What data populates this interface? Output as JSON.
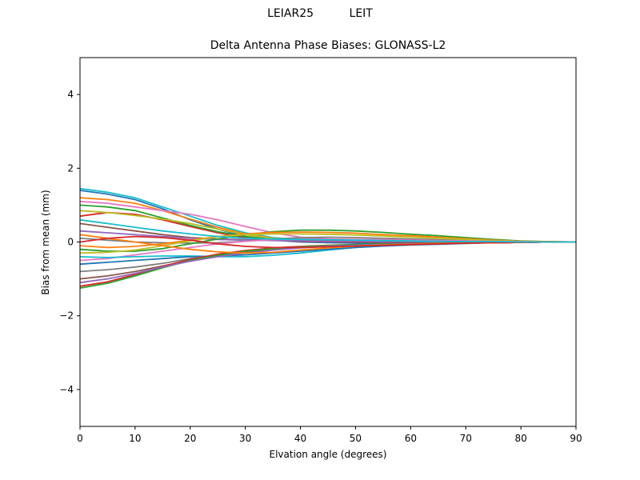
{
  "figure": {
    "suptitle": "LEIAR25          LEIT",
    "title": "Delta Antenna Phase Biases: GLONASS-L2",
    "xlabel": "Elvation angle (degrees)",
    "ylabel": "Bias from mean (mm)"
  },
  "chart_data": {
    "type": "line",
    "title": "Delta Antenna Phase Biases: GLONASS-L2",
    "suptitle": "LEIAR25          LEIT",
    "xlabel": "Elvation angle (degrees)",
    "ylabel": "Bias from mean (mm)",
    "xlim": [
      0,
      90
    ],
    "ylim": [
      -5,
      5
    ],
    "xticks": [
      0,
      10,
      20,
      30,
      40,
      50,
      60,
      70,
      80,
      90
    ],
    "yticks": [
      -4,
      -2,
      0,
      2,
      4
    ],
    "ytick_labels": [
      "−4",
      "−2",
      "0",
      "2",
      "4"
    ],
    "grid": false,
    "legend": "none",
    "x": [
      0,
      5,
      10,
      15,
      20,
      25,
      30,
      35,
      40,
      45,
      50,
      55,
      60,
      65,
      70,
      75,
      80,
      85,
      90
    ],
    "series_note": "Many (~60) overlapping per-satellite curves converging to 0 at 90 deg; representative subset",
    "series": [
      {
        "name": "s1",
        "color": "#17becf",
        "values": [
          1.45,
          1.35,
          1.2,
          0.95,
          0.7,
          0.45,
          0.25,
          0.12,
          0.06,
          0.03,
          0.02,
          0.02,
          0.02,
          0.02,
          0.01,
          0.01,
          0.0,
          0.0,
          0.0
        ]
      },
      {
        "name": "s2",
        "color": "#1f77b4",
        "values": [
          1.4,
          1.3,
          1.15,
          0.9,
          0.6,
          0.35,
          0.15,
          0.05,
          0.0,
          -0.02,
          -0.03,
          -0.03,
          -0.02,
          -0.02,
          -0.01,
          -0.01,
          0.0,
          0.0,
          0.0
        ]
      },
      {
        "name": "s3",
        "color": "#ff7f0e",
        "values": [
          1.2,
          1.15,
          1.05,
          0.85,
          0.62,
          0.4,
          0.22,
          0.1,
          0.05,
          0.03,
          0.02,
          0.02,
          0.01,
          0.01,
          0.01,
          0.0,
          0.0,
          0.0,
          0.0
        ]
      },
      {
        "name": "s4",
        "color": "#e377c2",
        "values": [
          1.1,
          1.05,
          0.95,
          0.85,
          0.75,
          0.6,
          0.42,
          0.25,
          0.13,
          0.08,
          0.05,
          0.04,
          0.03,
          0.02,
          0.01,
          0.01,
          0.0,
          0.0,
          0.0
        ]
      },
      {
        "name": "s5",
        "color": "#d62728",
        "values": [
          0.7,
          0.8,
          0.75,
          0.6,
          0.42,
          0.25,
          0.12,
          0.05,
          0.02,
          0.01,
          0.0,
          0.0,
          0.0,
          0.0,
          0.0,
          0.0,
          0.0,
          0.0,
          0.0
        ]
      },
      {
        "name": "s6",
        "color": "#2ca02c",
        "values": [
          1.0,
          0.95,
          0.85,
          0.65,
          0.45,
          0.28,
          0.15,
          0.08,
          0.05,
          0.04,
          0.03,
          0.02,
          0.02,
          0.01,
          0.01,
          0.0,
          0.0,
          0.0,
          0.0
        ]
      },
      {
        "name": "s7",
        "color": "#bcbd22",
        "values": [
          0.85,
          0.8,
          0.72,
          0.62,
          0.5,
          0.35,
          0.2,
          0.1,
          0.06,
          0.04,
          0.03,
          0.02,
          0.02,
          0.01,
          0.01,
          0.0,
          0.0,
          0.0,
          0.0
        ]
      },
      {
        "name": "s8",
        "color": "#8c564b",
        "values": [
          0.5,
          0.4,
          0.3,
          0.2,
          0.12,
          0.08,
          0.06,
          0.05,
          0.04,
          0.03,
          0.02,
          0.02,
          0.01,
          0.01,
          0.0,
          0.0,
          0.0,
          0.0,
          0.0
        ]
      },
      {
        "name": "s9",
        "color": "#9467bd",
        "values": [
          0.3,
          0.25,
          0.2,
          0.15,
          0.1,
          0.07,
          0.05,
          0.04,
          0.03,
          0.02,
          0.02,
          0.01,
          0.01,
          0.01,
          0.0,
          0.0,
          0.0,
          0.0,
          0.0
        ]
      },
      {
        "name": "s10",
        "color": "#7f7f7f",
        "values": [
          0.1,
          0.05,
          0.0,
          -0.02,
          -0.03,
          -0.02,
          0.02,
          0.08,
          0.12,
          0.13,
          0.12,
          0.1,
          0.08,
          0.06,
          0.04,
          0.02,
          0.01,
          0.0,
          0.0
        ]
      },
      {
        "name": "s11",
        "color": "#2ca02c",
        "values": [
          -0.2,
          -0.25,
          -0.25,
          -0.18,
          -0.05,
          0.08,
          0.2,
          0.28,
          0.32,
          0.32,
          0.3,
          0.26,
          0.21,
          0.17,
          0.12,
          0.07,
          0.03,
          0.01,
          0.0
        ]
      },
      {
        "name": "s12",
        "color": "#ff7f0e",
        "values": [
          -0.1,
          -0.15,
          -0.12,
          -0.05,
          0.05,
          0.15,
          0.22,
          0.26,
          0.27,
          0.26,
          0.24,
          0.2,
          0.17,
          0.13,
          0.09,
          0.05,
          0.02,
          0.01,
          0.0
        ]
      },
      {
        "name": "s13",
        "color": "#bcbd22",
        "values": [
          -0.3,
          -0.28,
          -0.22,
          -0.1,
          0.03,
          0.14,
          0.2,
          0.22,
          0.22,
          0.21,
          0.19,
          0.16,
          0.13,
          0.1,
          0.07,
          0.04,
          0.02,
          0.0,
          0.0
        ]
      },
      {
        "name": "s14",
        "color": "#e377c2",
        "values": [
          -0.5,
          -0.45,
          -0.35,
          -0.25,
          -0.15,
          -0.05,
          0.02,
          0.06,
          0.08,
          0.08,
          0.07,
          0.06,
          0.05,
          0.04,
          0.03,
          0.02,
          0.01,
          0.0,
          0.0
        ]
      },
      {
        "name": "s15",
        "color": "#17becf",
        "values": [
          -0.4,
          -0.42,
          -0.4,
          -0.38,
          -0.38,
          -0.4,
          -0.4,
          -0.36,
          -0.3,
          -0.22,
          -0.15,
          -0.1,
          -0.07,
          -0.05,
          -0.03,
          -0.02,
          -0.01,
          0.0,
          0.0
        ]
      },
      {
        "name": "s16",
        "color": "#1f77b4",
        "values": [
          -0.6,
          -0.55,
          -0.5,
          -0.45,
          -0.4,
          -0.38,
          -0.35,
          -0.3,
          -0.25,
          -0.2,
          -0.15,
          -0.11,
          -0.08,
          -0.06,
          -0.04,
          -0.02,
          -0.01,
          0.0,
          0.0
        ]
      },
      {
        "name": "s17",
        "color": "#7f7f7f",
        "values": [
          -0.8,
          -0.75,
          -0.68,
          -0.58,
          -0.45,
          -0.35,
          -0.27,
          -0.2,
          -0.15,
          -0.11,
          -0.08,
          -0.06,
          -0.05,
          -0.04,
          -0.03,
          -0.02,
          -0.01,
          0.0,
          0.0
        ]
      },
      {
        "name": "s18",
        "color": "#8c564b",
        "values": [
          -1.0,
          -0.92,
          -0.8,
          -0.65,
          -0.5,
          -0.38,
          -0.28,
          -0.2,
          -0.15,
          -0.11,
          -0.08,
          -0.06,
          -0.05,
          -0.04,
          -0.03,
          -0.02,
          -0.01,
          0.0,
          0.0
        ]
      },
      {
        "name": "s19",
        "color": "#d62728",
        "values": [
          -1.2,
          -1.08,
          -0.88,
          -0.66,
          -0.47,
          -0.33,
          -0.23,
          -0.16,
          -0.12,
          -0.09,
          -0.07,
          -0.05,
          -0.04,
          -0.03,
          -0.02,
          -0.01,
          -0.01,
          0.0,
          0.0
        ]
      },
      {
        "name": "s20",
        "color": "#2ca02c",
        "values": [
          -1.25,
          -1.12,
          -0.92,
          -0.7,
          -0.5,
          -0.36,
          -0.25,
          -0.18,
          -0.13,
          -0.1,
          -0.07,
          -0.05,
          -0.04,
          -0.03,
          -0.02,
          -0.01,
          -0.01,
          0.0,
          0.0
        ]
      },
      {
        "name": "s21",
        "color": "#9467bd",
        "values": [
          -1.1,
          -1.0,
          -0.85,
          -0.68,
          -0.52,
          -0.4,
          -0.3,
          -0.22,
          -0.16,
          -0.12,
          -0.09,
          -0.07,
          -0.05,
          -0.04,
          -0.03,
          -0.02,
          -0.01,
          0.0,
          0.0
        ]
      },
      {
        "name": "s22",
        "color": "#ff7f0e",
        "values": [
          0.2,
          0.1,
          0.0,
          -0.1,
          -0.2,
          -0.27,
          -0.3,
          -0.28,
          -0.22,
          -0.16,
          -0.11,
          -0.08,
          -0.06,
          -0.04,
          -0.03,
          -0.02,
          -0.01,
          0.0,
          0.0
        ]
      },
      {
        "name": "s23",
        "color": "#d62728",
        "values": [
          0.0,
          0.1,
          0.15,
          0.12,
          0.05,
          -0.05,
          -0.12,
          -0.15,
          -0.15,
          -0.13,
          -0.11,
          -0.09,
          -0.07,
          -0.05,
          -0.03,
          -0.02,
          -0.01,
          0.0,
          0.0
        ]
      },
      {
        "name": "s24",
        "color": "#17becf",
        "values": [
          0.6,
          0.5,
          0.4,
          0.3,
          0.22,
          0.15,
          0.1,
          0.08,
          0.07,
          0.06,
          0.05,
          0.04,
          0.03,
          0.02,
          0.01,
          0.01,
          0.0,
          0.0,
          0.0
        ]
      }
    ]
  }
}
